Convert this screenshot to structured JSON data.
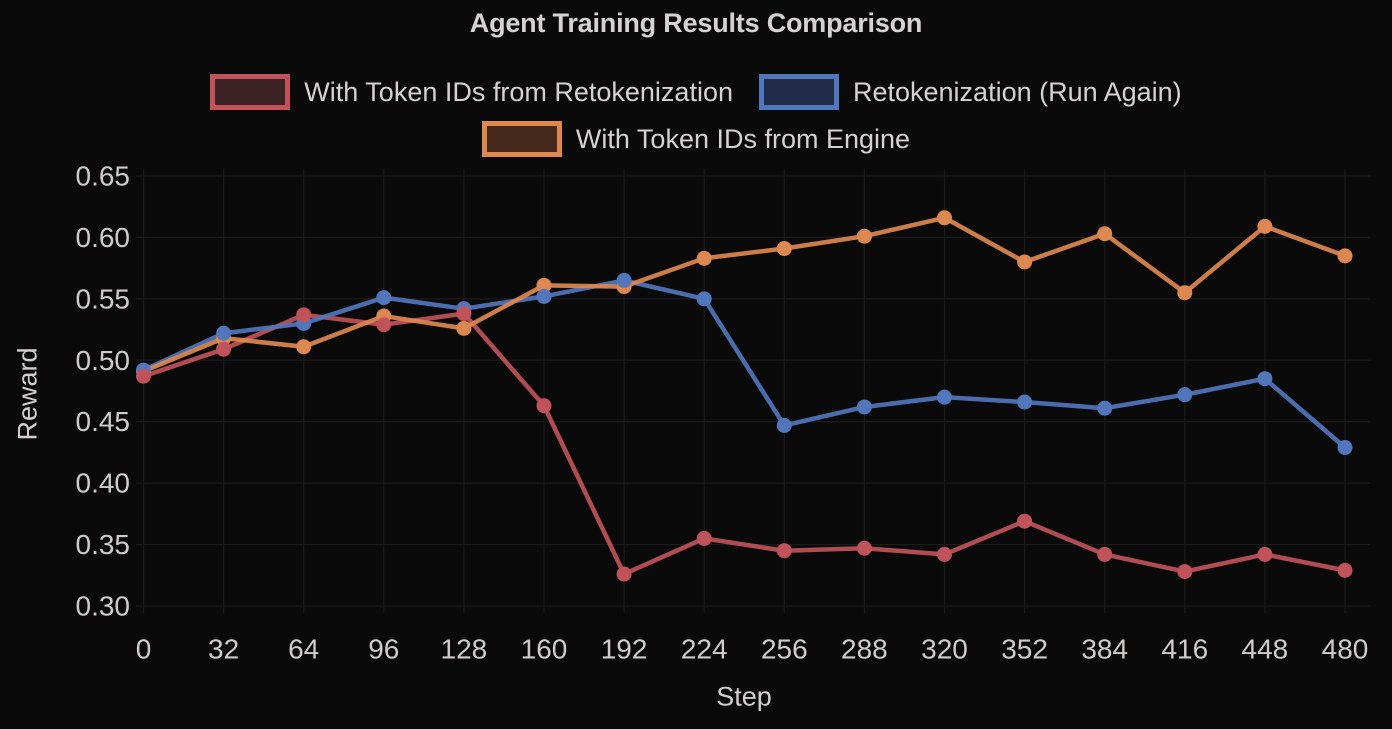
{
  "title": "Agent Training Results Comparison",
  "colors": {
    "background": "#0a0a0a",
    "grid": "#1b1b1d",
    "text": "#d6d2d1",
    "tick_text": "#cfcbca",
    "series_red": "#c05359",
    "series_blue": "#5176bc",
    "series_orange": "#dd8850"
  },
  "chart_data": {
    "type": "line",
    "title": "Agent Training Results Comparison",
    "xlabel": "Step",
    "ylabel": "Reward",
    "x": [
      0,
      32,
      64,
      96,
      128,
      160,
      192,
      224,
      256,
      288,
      320,
      352,
      384,
      416,
      448,
      480
    ],
    "series": [
      {
        "name": "With Token IDs from Retokenization",
        "color": "#c05359",
        "legend_fill": "#3d2226",
        "values": [
          0.487,
          0.509,
          0.537,
          0.529,
          0.538,
          0.463,
          0.326,
          0.355,
          0.345,
          0.347,
          0.342,
          0.369,
          0.342,
          0.328,
          0.342,
          0.329
        ]
      },
      {
        "name": "Retokenization (Run Again)",
        "color": "#5176bc",
        "legend_fill": "#202c49",
        "values": [
          0.492,
          0.522,
          0.53,
          0.551,
          0.542,
          0.552,
          0.565,
          0.55,
          0.447,
          0.462,
          0.47,
          0.466,
          0.461,
          0.472,
          0.485,
          0.429
        ]
      },
      {
        "name": "With Token IDs from Engine",
        "color": "#dd8850",
        "legend_fill": "#45291a",
        "values": [
          0.491,
          0.518,
          0.511,
          0.536,
          0.526,
          0.561,
          0.56,
          0.583,
          0.591,
          0.601,
          0.616,
          0.58,
          0.603,
          0.555,
          0.609,
          0.585
        ]
      }
    ],
    "yticks": [
      0.3,
      0.35,
      0.4,
      0.45,
      0.5,
      0.55,
      0.6,
      0.65
    ],
    "xlim": [
      0,
      480
    ],
    "ylim": [
      0.293,
      0.657
    ],
    "grid": true,
    "legend_position": "top",
    "legend_rows": [
      [
        0,
        1
      ],
      [
        2
      ]
    ],
    "marker": "circle"
  }
}
